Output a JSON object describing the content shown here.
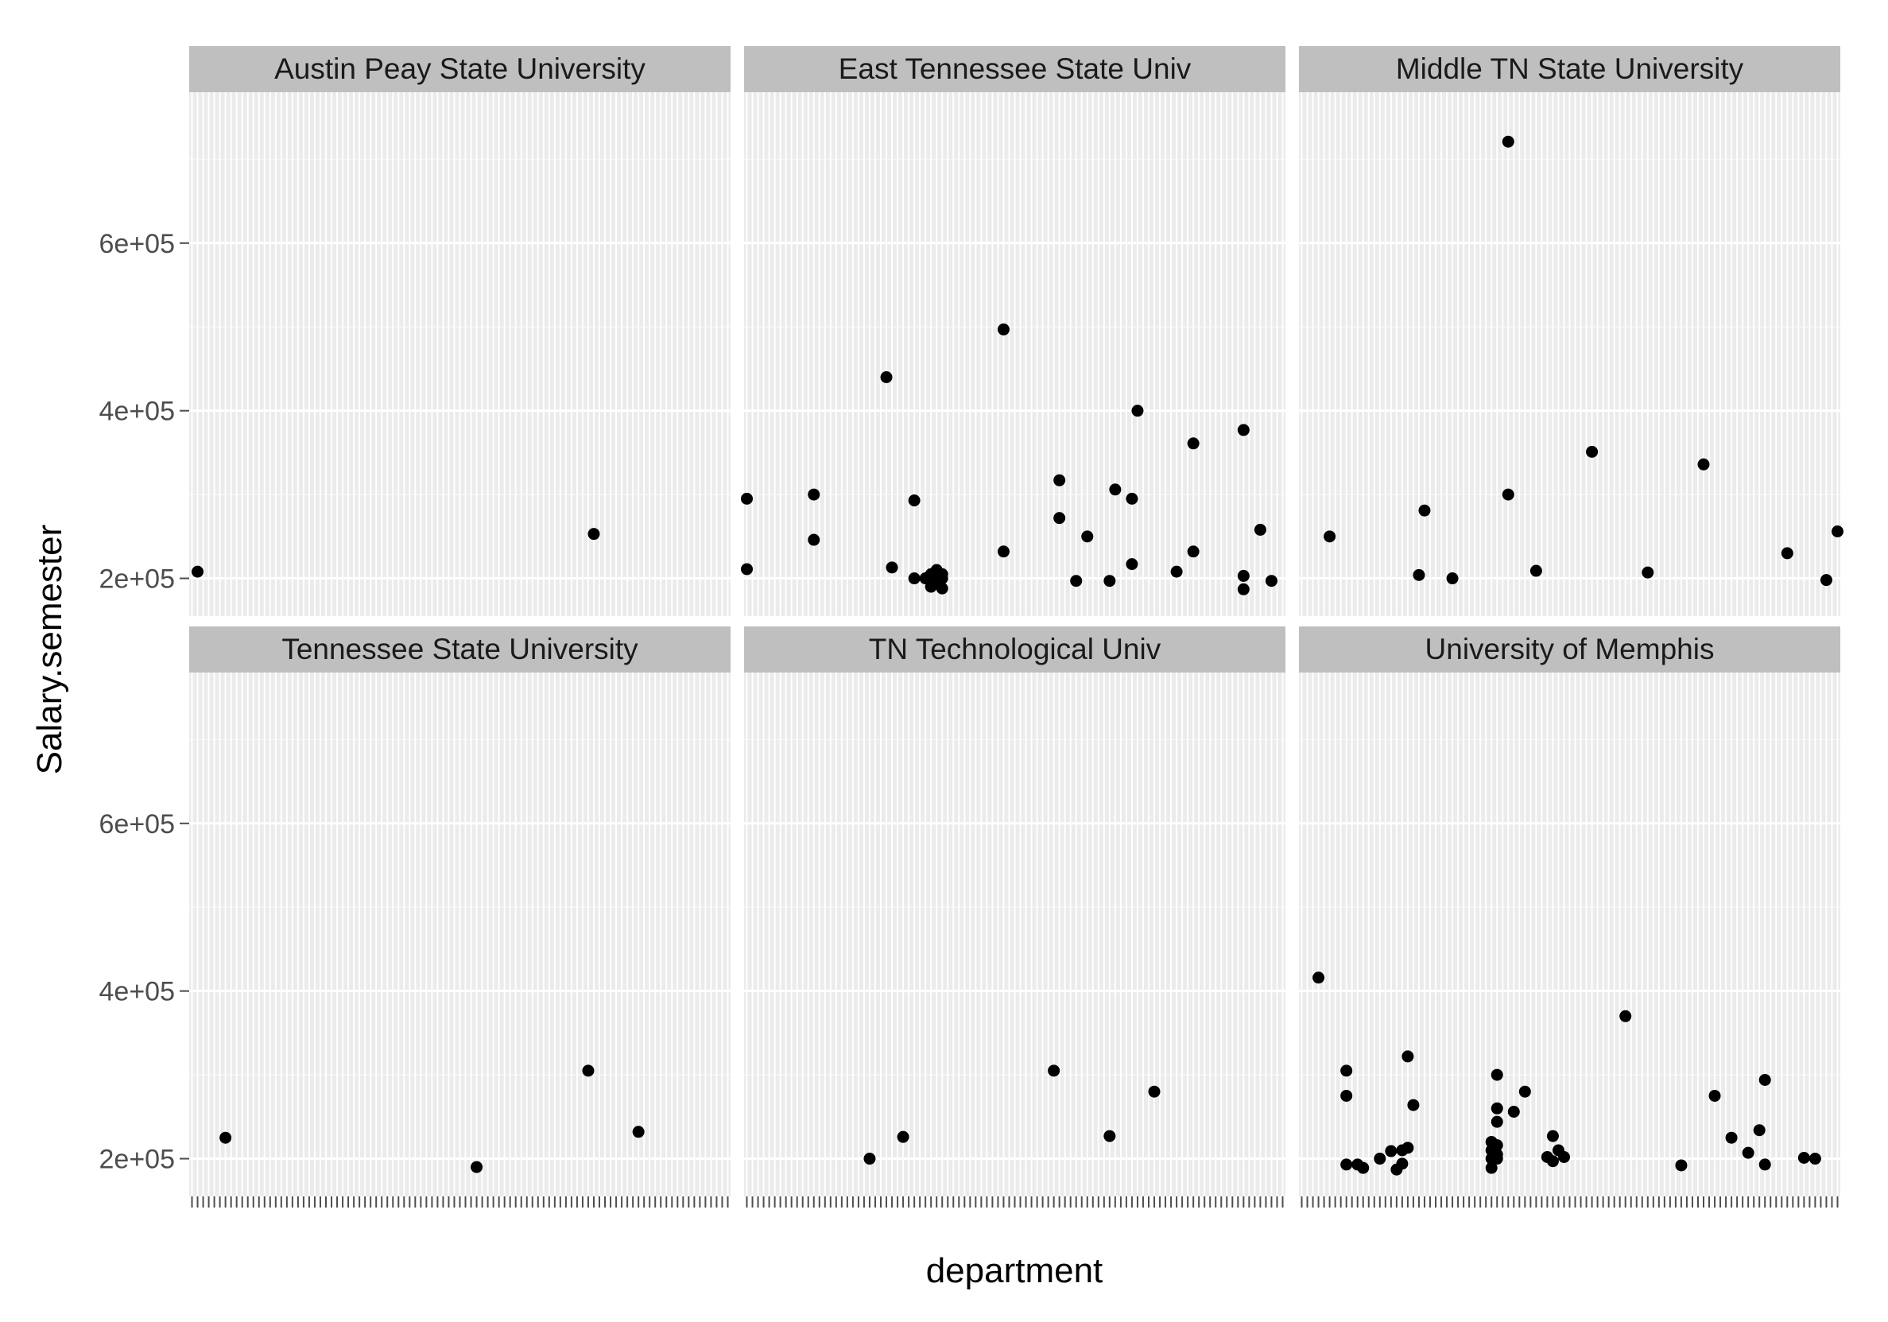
{
  "chart_data": {
    "type": "scatter",
    "xlabel": "department",
    "ylabel": "Salary.semester",
    "ylim": [
      155000,
      780000
    ],
    "y_ticks": [
      200000,
      400000,
      600000
    ],
    "y_tick_labels": [
      "2e+05",
      "4e+05",
      "6e+05"
    ],
    "x_is_categorical": true,
    "x_tick_labels_note": "illegible",
    "grid": true,
    "facets": [
      "Austin Peay State University",
      "East Tennessee State Univ",
      "Middle TN State University",
      "Tennessee State University",
      "TN Technological Univ",
      "University of Memphis"
    ],
    "facet_layout": "3 columns x 2 rows",
    "category_index_range": [
      1,
      97
    ],
    "series": [
      {
        "facet": "Austin Peay State University",
        "points": [
          [
            2,
            208000
          ],
          [
            73,
            253000
          ]
        ]
      },
      {
        "facet": "East Tennessee State Univ",
        "points": [
          [
            1,
            295000
          ],
          [
            1,
            211000
          ],
          [
            13,
            300000
          ],
          [
            13,
            246000
          ],
          [
            26,
            440000
          ],
          [
            27,
            213000
          ],
          [
            31,
            293000
          ],
          [
            31,
            200000
          ],
          [
            33,
            200000
          ],
          [
            34,
            205000
          ],
          [
            34,
            190000
          ],
          [
            35,
            195000
          ],
          [
            35,
            210000
          ],
          [
            36,
            200000
          ],
          [
            36,
            188000
          ],
          [
            36,
            205000
          ],
          [
            47,
            497000
          ],
          [
            47,
            232000
          ],
          [
            57,
            317000
          ],
          [
            57,
            272000
          ],
          [
            60,
            197000
          ],
          [
            62,
            250000
          ],
          [
            66,
            197000
          ],
          [
            67,
            306000
          ],
          [
            70,
            295000
          ],
          [
            70,
            217000
          ],
          [
            71,
            400000
          ],
          [
            78,
            208000
          ],
          [
            81,
            361000
          ],
          [
            81,
            232000
          ],
          [
            90,
            377000
          ],
          [
            90,
            203000
          ],
          [
            90,
            187000
          ],
          [
            93,
            258000
          ],
          [
            95,
            197000
          ]
        ]
      },
      {
        "facet": "Middle TN State University",
        "points": [
          [
            6,
            250000
          ],
          [
            22,
            204000
          ],
          [
            23,
            281000
          ],
          [
            28,
            200000
          ],
          [
            38,
            721000
          ],
          [
            38,
            300000
          ],
          [
            43,
            209000
          ],
          [
            53,
            351000
          ],
          [
            63,
            207000
          ],
          [
            73,
            336000
          ],
          [
            88,
            230000
          ],
          [
            95,
            198000
          ],
          [
            97,
            256000
          ]
        ]
      },
      {
        "facet": "Tennessee State University",
        "points": [
          [
            7,
            225000
          ],
          [
            52,
            190000
          ],
          [
            72,
            305000
          ],
          [
            81,
            232000
          ]
        ]
      },
      {
        "facet": "TN Technological Univ",
        "points": [
          [
            23,
            200000
          ],
          [
            29,
            226000
          ],
          [
            56,
            305000
          ],
          [
            66,
            227000
          ],
          [
            74,
            280000
          ]
        ]
      },
      {
        "facet": "University of Memphis",
        "points": [
          [
            4,
            416000
          ],
          [
            9,
            305000
          ],
          [
            9,
            275000
          ],
          [
            9,
            193000
          ],
          [
            11,
            193000
          ],
          [
            12,
            189000
          ],
          [
            15,
            200000
          ],
          [
            17,
            209000
          ],
          [
            18,
            187000
          ],
          [
            19,
            210000
          ],
          [
            19,
            194000
          ],
          [
            20,
            213000
          ],
          [
            20,
            322000
          ],
          [
            21,
            264000
          ],
          [
            36,
            300000
          ],
          [
            36,
            260000
          ],
          [
            36,
            244000
          ],
          [
            35,
            220000
          ],
          [
            36,
            216000
          ],
          [
            35,
            210000
          ],
          [
            36,
            205000
          ],
          [
            35,
            200000
          ],
          [
            36,
            200000
          ],
          [
            35,
            189000
          ],
          [
            39,
            256000
          ],
          [
            41,
            280000
          ],
          [
            45,
            202000
          ],
          [
            46,
            227000
          ],
          [
            46,
            197000
          ],
          [
            47,
            210000
          ],
          [
            48,
            202000
          ],
          [
            59,
            370000
          ],
          [
            69,
            192000
          ],
          [
            75,
            275000
          ],
          [
            78,
            225000
          ],
          [
            81,
            207000
          ],
          [
            83,
            234000
          ],
          [
            84,
            294000
          ],
          [
            84,
            193000
          ],
          [
            91,
            201000
          ],
          [
            93,
            200000
          ]
        ]
      }
    ]
  }
}
